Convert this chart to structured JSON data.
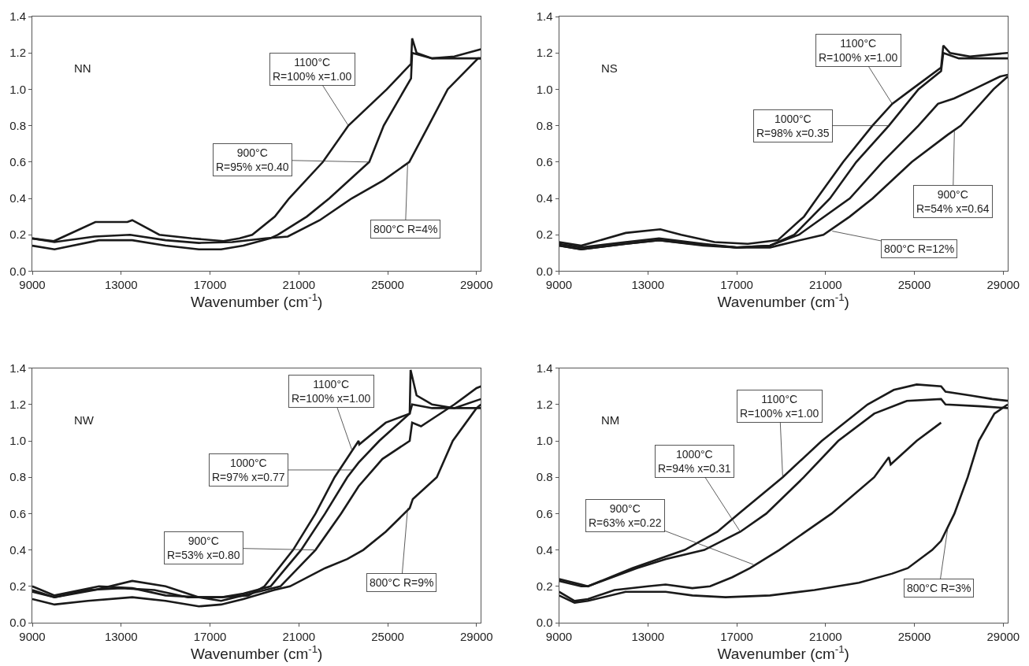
{
  "chart_data": [
    {
      "type": "line",
      "xlabel": "Wavenumber (cm$^{-1}$)",
      "xlim": [
        9000,
        29200
      ],
      "ylim": [
        0,
        1.4
      ],
      "xticks": [
        9000,
        13000,
        17000,
        21000,
        25000,
        29000
      ],
      "yticks": [
        {
          "value": 0,
          "label": "0.0"
        },
        {
          "value": 0.2,
          "label": "0.2"
        },
        {
          "value": 0.4,
          "label": "0.4"
        },
        {
          "value": 0.6,
          "label": "0.6"
        },
        {
          "value": 0.8,
          "label": "0.8"
        },
        {
          "value": 1.0,
          "label": "1.0"
        },
        {
          "value": 1.2,
          "label": "1.2"
        },
        {
          "value": 1.4,
          "label": "1.4"
        }
      ],
      "marker": "none",
      "line_style": "solid",
      "series": [
        {
          "color": "#1a1a1a",
          "x": [
            9000,
            9970,
            11840,
            13280,
            13500,
            14720,
            16170,
            17610,
            18330,
            18900,
            19920,
            20560,
            22080,
            23230,
            24960,
            26050,
            26100,
            26300,
            27000,
            28000,
            29200
          ],
          "values": [
            0.18,
            0.165,
            0.27,
            0.27,
            0.28,
            0.2,
            0.18,
            0.165,
            0.18,
            0.2,
            0.3,
            0.4,
            0.6,
            0.8,
            1.0,
            1.14,
            1.28,
            1.2,
            1.17,
            1.18,
            1.22
          ]
        },
        {
          "color": "#1a1a1a",
          "x": [
            9000,
            10000,
            12000,
            13500,
            15000,
            16500,
            17500,
            18500,
            19700,
            20060,
            21360,
            22370,
            24170,
            24820,
            26050,
            26100,
            27000,
            29200
          ],
          "values": [
            0.14,
            0.12,
            0.17,
            0.17,
            0.14,
            0.12,
            0.12,
            0.14,
            0.18,
            0.2,
            0.3,
            0.4,
            0.6,
            0.8,
            1.06,
            1.2,
            1.17,
            1.17
          ]
        },
        {
          "color": "#1a1a1a",
          "x": [
            9000,
            10000,
            11800,
            13400,
            15000,
            16500,
            18000,
            19500,
            20500,
            21940,
            23380,
            24820,
            25970,
            26840,
            27700,
            29070,
            29200
          ],
          "values": [
            0.18,
            0.16,
            0.19,
            0.2,
            0.17,
            0.155,
            0.16,
            0.18,
            0.19,
            0.28,
            0.4,
            0.5,
            0.6,
            0.8,
            1.0,
            1.17,
            1.17
          ]
        }
      ],
      "annotations": [
        "NN",
        {
          "text": "1100°C\nR=100% x=1.00",
          "x": 23230,
          "y": 0.8
        },
        {
          "text": "900°C\nR=95% x=0.40",
          "x": 24170,
          "y": 0.6
        },
        {
          "text": "800°C R=4%",
          "x": 25900,
          "y": 0.6
        }
      ]
    },
    {
      "type": "line",
      "xlabel": "Wavenumber (cm$^{-1}$)",
      "xlim": [
        9000,
        29200
      ],
      "ylim": [
        0,
        1.4
      ],
      "xticks": [
        9000,
        13000,
        17000,
        21000,
        25000,
        29000
      ],
      "yticks": [
        {
          "value": 0,
          "label": "0.0"
        },
        {
          "value": 0.2,
          "label": "0.2"
        },
        {
          "value": 0.4,
          "label": "0.4"
        },
        {
          "value": 0.6,
          "label": "0.6"
        },
        {
          "value": 0.8,
          "label": "0.8"
        },
        {
          "value": 1.0,
          "label": "1.0"
        },
        {
          "value": 1.2,
          "label": "1.2"
        },
        {
          "value": 1.4,
          "label": "1.4"
        }
      ],
      "marker": "none",
      "line_style": "solid",
      "series": [
        {
          "color": "#1a1a1a",
          "x": [
            9000,
            10000,
            12000,
            13560,
            14500,
            16000,
            17500,
            18850,
            20030,
            20610,
            21790,
            23110,
            24000,
            24880,
            26200,
            26300,
            26600,
            27500,
            29200
          ],
          "values": [
            0.16,
            0.14,
            0.21,
            0.23,
            0.2,
            0.16,
            0.15,
            0.17,
            0.3,
            0.4,
            0.6,
            0.8,
            0.92,
            1.0,
            1.12,
            1.24,
            1.2,
            1.18,
            1.2
          ]
        },
        {
          "color": "#1a1a1a",
          "x": [
            9000,
            10000,
            12000,
            13500,
            15500,
            17000,
            18500,
            19590,
            21200,
            22380,
            23850,
            25180,
            26200,
            26300,
            27000,
            29200
          ],
          "values": [
            0.15,
            0.13,
            0.16,
            0.18,
            0.15,
            0.13,
            0.14,
            0.2,
            0.4,
            0.6,
            0.8,
            1.0,
            1.1,
            1.2,
            1.17,
            1.17
          ]
        },
        {
          "color": "#1a1a1a",
          "x": [
            9000,
            10000,
            12000,
            13500,
            15500,
            17000,
            18500,
            19800,
            22090,
            23560,
            25180,
            26060,
            26790,
            27670,
            28850,
            29200
          ],
          "values": [
            0.14,
            0.12,
            0.15,
            0.17,
            0.14,
            0.13,
            0.14,
            0.2,
            0.4,
            0.6,
            0.8,
            0.92,
            0.95,
            1.0,
            1.07,
            1.08
          ]
        },
        {
          "color": "#1a1a1a",
          "x": [
            9000,
            10000,
            12000,
            13500,
            15000,
            17000,
            18500,
            19500,
            20900,
            22090,
            23120,
            24880,
            26500,
            27090,
            28560,
            29200
          ],
          "values": [
            0.14,
            0.12,
            0.15,
            0.17,
            0.15,
            0.13,
            0.13,
            0.16,
            0.2,
            0.3,
            0.4,
            0.6,
            0.75,
            0.8,
            1.0,
            1.07
          ]
        }
      ],
      "annotations": [
        "NS",
        {
          "text": "1100°C\nR=100% x=1.00",
          "x": 24000,
          "y": 0.92
        },
        {
          "text": "1000°C\nR=98% x=0.35",
          "x": 23850,
          "y": 0.8
        },
        {
          "text": "900°C\nR=54% x=0.64",
          "x": 26800,
          "y": 0.77
        },
        {
          "text": "800°C R=12%",
          "x": 21300,
          "y": 0.22
        }
      ]
    },
    {
      "type": "line",
      "xlabel": "Wavenumber (cm$^{-1}$)",
      "xlim": [
        9000,
        29200
      ],
      "ylim": [
        0,
        1.4
      ],
      "xticks": [
        9000,
        13000,
        17000,
        21000,
        25000,
        29000
      ],
      "yticks": [
        {
          "value": 0,
          "label": "0.0"
        },
        {
          "value": 0.2,
          "label": "0.2"
        },
        {
          "value": 0.4,
          "label": "0.4"
        },
        {
          "value": 0.6,
          "label": "0.6"
        },
        {
          "value": 0.8,
          "label": "0.8"
        },
        {
          "value": 1.0,
          "label": "1.0"
        },
        {
          "value": 1.2,
          "label": "1.2"
        },
        {
          "value": 1.4,
          "label": "1.4"
        }
      ],
      "marker": "none",
      "line_style": "solid",
      "series": [
        {
          "color": "#1a1a1a",
          "x": [
            9000,
            10000,
            11500,
            13000,
            14500,
            16000,
            17500,
            18730,
            19450,
            20740,
            21750,
            22610,
            23690,
            23720,
            24910,
            25990,
            26030,
            26300,
            27000,
            28000,
            29200
          ],
          "values": [
            0.17,
            0.14,
            0.18,
            0.19,
            0.18,
            0.14,
            0.14,
            0.15,
            0.2,
            0.4,
            0.6,
            0.8,
            1.0,
            0.98,
            1.1,
            1.15,
            1.39,
            1.25,
            1.2,
            1.18,
            1.23
          ]
        },
        {
          "color": "#1a1a1a",
          "x": [
            9000,
            10000,
            12000,
            13500,
            15000,
            16500,
            17500,
            18500,
            19730,
            21100,
            22180,
            23180,
            23690,
            24620,
            25990,
            26100,
            27000,
            29200
          ],
          "values": [
            0.2,
            0.15,
            0.2,
            0.19,
            0.15,
            0.14,
            0.14,
            0.16,
            0.2,
            0.4,
            0.6,
            0.8,
            0.88,
            1.0,
            1.15,
            1.2,
            1.18,
            1.18
          ]
        },
        {
          "color": "#1a1a1a",
          "x": [
            9000,
            10000,
            11800,
            13500,
            15000,
            16500,
            17500,
            18500,
            20170,
            21750,
            22900,
            23690,
            24760,
            25990,
            26100,
            26500,
            27000,
            28000,
            29000,
            29200
          ],
          "values": [
            0.18,
            0.14,
            0.18,
            0.23,
            0.2,
            0.14,
            0.12,
            0.15,
            0.2,
            0.4,
            0.6,
            0.75,
            0.9,
            1.0,
            1.1,
            1.08,
            1.12,
            1.2,
            1.29,
            1.3
          ]
        },
        {
          "color": "#1a1a1a",
          "x": [
            9000,
            10000,
            11500,
            13500,
            15000,
            16500,
            17500,
            18500,
            19880,
            20600,
            22180,
            23180,
            23900,
            24910,
            25990,
            26130,
            27210,
            27930,
            29000,
            29200
          ],
          "values": [
            0.13,
            0.1,
            0.12,
            0.14,
            0.12,
            0.09,
            0.1,
            0.13,
            0.18,
            0.2,
            0.3,
            0.35,
            0.4,
            0.5,
            0.63,
            0.68,
            0.8,
            1.0,
            1.18,
            1.2
          ]
        }
      ],
      "annotations": [
        "NW",
        {
          "text": "1100°C\nR=100% x=1.00",
          "x": 23400,
          "y": 0.946
        },
        {
          "text": "1000°C\nR=97% x=0.77",
          "x": 23400,
          "y": 0.84
        },
        {
          "text": "900°C\nR=53% x=0.80",
          "x": 21750,
          "y": 0.4
        },
        {
          "text": "800°C R=9%",
          "x": 25900,
          "y": 0.63
        }
      ]
    },
    {
      "type": "line",
      "xlabel": "Wavenumber (cm$^{-1}$)",
      "xlim": [
        9000,
        29200
      ],
      "ylim": [
        0,
        1.4
      ],
      "xticks": [
        9000,
        13000,
        17000,
        21000,
        25000,
        29000
      ],
      "yticks": [
        {
          "value": 0,
          "label": "0.0"
        },
        {
          "value": 0.2,
          "label": "0.2"
        },
        {
          "value": 0.4,
          "label": "0.4"
        },
        {
          "value": 0.6,
          "label": "0.6"
        },
        {
          "value": 0.8,
          "label": "0.8"
        },
        {
          "value": 1.0,
          "label": "1.0"
        },
        {
          "value": 1.2,
          "label": "1.2"
        },
        {
          "value": 1.4,
          "label": "1.4"
        }
      ],
      "marker": "none",
      "line_style": "solid",
      "series": [
        {
          "color": "#1a1a1a",
          "x": [
            9000,
            10000,
            10300,
            12300,
            14660,
            16130,
            17090,
            19070,
            20830,
            22890,
            24070,
            25100,
            26200,
            26400,
            27500,
            28500,
            29200
          ],
          "values": [
            0.24,
            0.21,
            0.2,
            0.3,
            0.4,
            0.5,
            0.6,
            0.8,
            1.0,
            1.2,
            1.28,
            1.31,
            1.3,
            1.27,
            1.25,
            1.23,
            1.22
          ]
        },
        {
          "color": "#1a1a1a",
          "x": [
            9000,
            10000,
            10300,
            12500,
            13800,
            15540,
            17160,
            18330,
            20020,
            21570,
            23190,
            24660,
            26200,
            26400,
            28000,
            29200
          ],
          "values": [
            0.23,
            0.2,
            0.2,
            0.3,
            0.35,
            0.4,
            0.5,
            0.6,
            0.8,
            1.0,
            1.15,
            1.22,
            1.23,
            1.2,
            1.19,
            1.18
          ]
        },
        {
          "color": "#1a1a1a",
          "x": [
            9000,
            9700,
            10300,
            11500,
            13000,
            13800,
            15000,
            15800,
            16800,
            17600,
            18920,
            21270,
            23190,
            23850,
            23930,
            25100,
            26200
          ],
          "values": [
            0.17,
            0.12,
            0.13,
            0.18,
            0.2,
            0.21,
            0.19,
            0.2,
            0.25,
            0.3,
            0.4,
            0.6,
            0.8,
            0.91,
            0.87,
            1.0,
            1.1
          ]
        },
        {
          "color": "#1a1a1a",
          "x": [
            9000,
            9700,
            10300,
            12000,
            13800,
            15000,
            16500,
            18500,
            20500,
            22500,
            24000,
            24700,
            25800,
            26200,
            26800,
            27400,
            27900,
            28600,
            29200
          ],
          "values": [
            0.15,
            0.11,
            0.12,
            0.17,
            0.17,
            0.15,
            0.14,
            0.15,
            0.18,
            0.22,
            0.27,
            0.3,
            0.4,
            0.45,
            0.6,
            0.8,
            1.0,
            1.15,
            1.2
          ]
        }
      ],
      "annotations": [
        "NM",
        {
          "text": "1100°C\nR=100% x=1.00",
          "x": 19070,
          "y": 0.8
        },
        {
          "text": "1000°C\nR=94% x=0.31",
          "x": 17160,
          "y": 0.5
        },
        {
          "text": "900°C\nR=63% x=0.22",
          "x": 17750,
          "y": 0.32
        },
        {
          "text": "800°C R=3%",
          "x": 26500,
          "y": 0.52
        }
      ]
    }
  ]
}
